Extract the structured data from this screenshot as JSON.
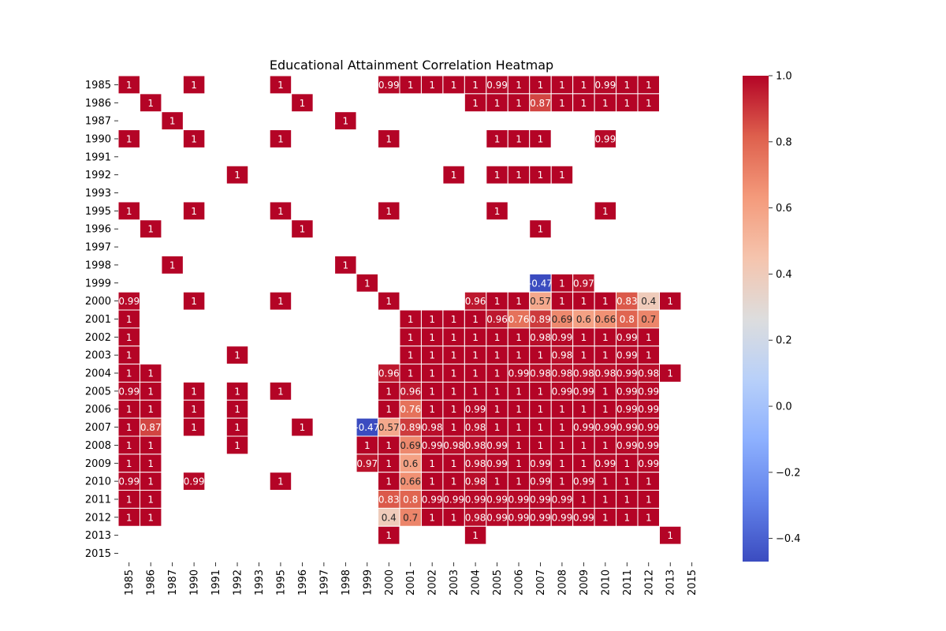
{
  "chart_data": {
    "type": "heatmap",
    "title": "Educational Attainment Correlation Heatmap",
    "xlabel": "",
    "ylabel": "",
    "colormap": "coolwarm",
    "vmin": -0.47,
    "vmax": 1.0,
    "colorbar_ticks": [
      "1.0",
      "0.8",
      "0.6",
      "0.4",
      "0.2",
      "0.0",
      "−0.2",
      "−0.4"
    ],
    "colorbar_tick_values": [
      1.0,
      0.8,
      0.6,
      0.4,
      0.2,
      0.0,
      -0.2,
      -0.4
    ],
    "rows": [
      "1985",
      "1986",
      "1987",
      "1990",
      "1991",
      "1992",
      "1993",
      "1995",
      "1996",
      "1997",
      "1998",
      "1999",
      "2000",
      "2001",
      "2002",
      "2003",
      "2004",
      "2005",
      "2006",
      "2007",
      "2008",
      "2009",
      "2010",
      "2011",
      "2012",
      "2013",
      "2015"
    ],
    "cols": [
      "1985",
      "1986",
      "1987",
      "1990",
      "1991",
      "1992",
      "1993",
      "1995",
      "1996",
      "1997",
      "1998",
      "1999",
      "2000",
      "2001",
      "2002",
      "2003",
      "2004",
      "2005",
      "2006",
      "2007",
      "2008",
      "2009",
      "2010",
      "2011",
      "2012",
      "2013",
      "2015"
    ],
    "cells": [
      [
        "1985",
        "1985",
        1
      ],
      [
        "1985",
        "1990",
        1
      ],
      [
        "1985",
        "1995",
        1
      ],
      [
        "1985",
        "2000",
        0.99
      ],
      [
        "1985",
        "2001",
        1
      ],
      [
        "1985",
        "2002",
        1
      ],
      [
        "1985",
        "2003",
        1
      ],
      [
        "1985",
        "2004",
        1
      ],
      [
        "1985",
        "2005",
        0.99
      ],
      [
        "1985",
        "2006",
        1
      ],
      [
        "1985",
        "2007",
        1
      ],
      [
        "1985",
        "2008",
        1
      ],
      [
        "1985",
        "2009",
        1
      ],
      [
        "1985",
        "2010",
        0.99
      ],
      [
        "1985",
        "2011",
        1
      ],
      [
        "1985",
        "2012",
        1
      ],
      [
        "1986",
        "1986",
        1
      ],
      [
        "1986",
        "1996",
        1
      ],
      [
        "1986",
        "2004",
        1
      ],
      [
        "1986",
        "2005",
        1
      ],
      [
        "1986",
        "2006",
        1
      ],
      [
        "1986",
        "2007",
        0.87
      ],
      [
        "1986",
        "2008",
        1
      ],
      [
        "1986",
        "2009",
        1
      ],
      [
        "1986",
        "2010",
        1
      ],
      [
        "1986",
        "2011",
        1
      ],
      [
        "1986",
        "2012",
        1
      ],
      [
        "1987",
        "1987",
        1
      ],
      [
        "1987",
        "1998",
        1
      ],
      [
        "1990",
        "1985",
        1
      ],
      [
        "1990",
        "1990",
        1
      ],
      [
        "1990",
        "1995",
        1
      ],
      [
        "1990",
        "2000",
        1
      ],
      [
        "1990",
        "2005",
        1
      ],
      [
        "1990",
        "2006",
        1
      ],
      [
        "1990",
        "2007",
        1
      ],
      [
        "1990",
        "2010",
        0.99
      ],
      [
        "1992",
        "1992",
        1
      ],
      [
        "1992",
        "2003",
        1
      ],
      [
        "1992",
        "2005",
        1
      ],
      [
        "1992",
        "2006",
        1
      ],
      [
        "1992",
        "2007",
        1
      ],
      [
        "1992",
        "2008",
        1
      ],
      [
        "1995",
        "1985",
        1
      ],
      [
        "1995",
        "1990",
        1
      ],
      [
        "1995",
        "1995",
        1
      ],
      [
        "1995",
        "2000",
        1
      ],
      [
        "1995",
        "2005",
        1
      ],
      [
        "1995",
        "2010",
        1
      ],
      [
        "1996",
        "1986",
        1
      ],
      [
        "1996",
        "1996",
        1
      ],
      [
        "1996",
        "2007",
        1
      ],
      [
        "1998",
        "1987",
        1
      ],
      [
        "1998",
        "1998",
        1
      ],
      [
        "1999",
        "1999",
        1
      ],
      [
        "1999",
        "2007",
        -0.47
      ],
      [
        "1999",
        "2008",
        1
      ],
      [
        "1999",
        "2009",
        0.97
      ],
      [
        "2000",
        "1985",
        0.99
      ],
      [
        "2000",
        "1990",
        1
      ],
      [
        "2000",
        "1995",
        1
      ],
      [
        "2000",
        "2000",
        1
      ],
      [
        "2000",
        "2004",
        0.96
      ],
      [
        "2000",
        "2005",
        1
      ],
      [
        "2000",
        "2006",
        1
      ],
      [
        "2000",
        "2007",
        0.57
      ],
      [
        "2000",
        "2008",
        1
      ],
      [
        "2000",
        "2009",
        1
      ],
      [
        "2000",
        "2010",
        1
      ],
      [
        "2000",
        "2011",
        0.83
      ],
      [
        "2000",
        "2012",
        0.4
      ],
      [
        "2000",
        "2013",
        1
      ],
      [
        "2001",
        "1985",
        1
      ],
      [
        "2001",
        "2001",
        1
      ],
      [
        "2001",
        "2002",
        1
      ],
      [
        "2001",
        "2003",
        1
      ],
      [
        "2001",
        "2004",
        1
      ],
      [
        "2001",
        "2005",
        0.96
      ],
      [
        "2001",
        "2006",
        0.76
      ],
      [
        "2001",
        "2007",
        0.89
      ],
      [
        "2001",
        "2008",
        0.69
      ],
      [
        "2001",
        "2009",
        0.6
      ],
      [
        "2001",
        "2010",
        0.66
      ],
      [
        "2001",
        "2011",
        0.8
      ],
      [
        "2001",
        "2012",
        0.7
      ],
      [
        "2002",
        "1985",
        1
      ],
      [
        "2002",
        "2001",
        1
      ],
      [
        "2002",
        "2002",
        1
      ],
      [
        "2002",
        "2003",
        1
      ],
      [
        "2002",
        "2004",
        1
      ],
      [
        "2002",
        "2005",
        1
      ],
      [
        "2002",
        "2006",
        1
      ],
      [
        "2002",
        "2007",
        0.98
      ],
      [
        "2002",
        "2008",
        0.99
      ],
      [
        "2002",
        "2009",
        1
      ],
      [
        "2002",
        "2010",
        1
      ],
      [
        "2002",
        "2011",
        0.99
      ],
      [
        "2002",
        "2012",
        1
      ],
      [
        "2003",
        "1985",
        1
      ],
      [
        "2003",
        "1992",
        1
      ],
      [
        "2003",
        "2001",
        1
      ],
      [
        "2003",
        "2002",
        1
      ],
      [
        "2003",
        "2003",
        1
      ],
      [
        "2003",
        "2004",
        1
      ],
      [
        "2003",
        "2005",
        1
      ],
      [
        "2003",
        "2006",
        1
      ],
      [
        "2003",
        "2007",
        1
      ],
      [
        "2003",
        "2008",
        0.98
      ],
      [
        "2003",
        "2009",
        1
      ],
      [
        "2003",
        "2010",
        1
      ],
      [
        "2003",
        "2011",
        0.99
      ],
      [
        "2003",
        "2012",
        1
      ],
      [
        "2004",
        "1985",
        1
      ],
      [
        "2004",
        "1986",
        1
      ],
      [
        "2004",
        "2000",
        0.96
      ],
      [
        "2004",
        "2001",
        1
      ],
      [
        "2004",
        "2002",
        1
      ],
      [
        "2004",
        "2003",
        1
      ],
      [
        "2004",
        "2004",
        1
      ],
      [
        "2004",
        "2005",
        1
      ],
      [
        "2004",
        "2006",
        0.99
      ],
      [
        "2004",
        "2007",
        0.98
      ],
      [
        "2004",
        "2008",
        0.98
      ],
      [
        "2004",
        "2009",
        0.98
      ],
      [
        "2004",
        "2010",
        0.98
      ],
      [
        "2004",
        "2011",
        0.99
      ],
      [
        "2004",
        "2012",
        0.98
      ],
      [
        "2004",
        "2013",
        1
      ],
      [
        "2005",
        "1985",
        0.99
      ],
      [
        "2005",
        "1986",
        1
      ],
      [
        "2005",
        "1990",
        1
      ],
      [
        "2005",
        "1992",
        1
      ],
      [
        "2005",
        "1995",
        1
      ],
      [
        "2005",
        "2000",
        1
      ],
      [
        "2005",
        "2001",
        0.96
      ],
      [
        "2005",
        "2002",
        1
      ],
      [
        "2005",
        "2003",
        1
      ],
      [
        "2005",
        "2004",
        1
      ],
      [
        "2005",
        "2005",
        1
      ],
      [
        "2005",
        "2006",
        1
      ],
      [
        "2005",
        "2007",
        1
      ],
      [
        "2005",
        "2008",
        0.99
      ],
      [
        "2005",
        "2009",
        0.99
      ],
      [
        "2005",
        "2010",
        1
      ],
      [
        "2005",
        "2011",
        0.99
      ],
      [
        "2005",
        "2012",
        0.99
      ],
      [
        "2006",
        "1985",
        1
      ],
      [
        "2006",
        "1986",
        1
      ],
      [
        "2006",
        "1990",
        1
      ],
      [
        "2006",
        "1992",
        1
      ],
      [
        "2006",
        "2000",
        1
      ],
      [
        "2006",
        "2001",
        0.76
      ],
      [
        "2006",
        "2002",
        1
      ],
      [
        "2006",
        "2003",
        1
      ],
      [
        "2006",
        "2004",
        0.99
      ],
      [
        "2006",
        "2005",
        1
      ],
      [
        "2006",
        "2006",
        1
      ],
      [
        "2006",
        "2007",
        1
      ],
      [
        "2006",
        "2008",
        1
      ],
      [
        "2006",
        "2009",
        1
      ],
      [
        "2006",
        "2010",
        1
      ],
      [
        "2006",
        "2011",
        0.99
      ],
      [
        "2006",
        "2012",
        0.99
      ],
      [
        "2007",
        "1985",
        1
      ],
      [
        "2007",
        "1986",
        0.87
      ],
      [
        "2007",
        "1990",
        1
      ],
      [
        "2007",
        "1992",
        1
      ],
      [
        "2007",
        "1996",
        1
      ],
      [
        "2007",
        "1999",
        -0.47
      ],
      [
        "2007",
        "2000",
        0.57
      ],
      [
        "2007",
        "2001",
        0.89
      ],
      [
        "2007",
        "2002",
        0.98
      ],
      [
        "2007",
        "2003",
        1
      ],
      [
        "2007",
        "2004",
        0.98
      ],
      [
        "2007",
        "2005",
        1
      ],
      [
        "2007",
        "2006",
        1
      ],
      [
        "2007",
        "2007",
        1
      ],
      [
        "2007",
        "2008",
        1
      ],
      [
        "2007",
        "2009",
        0.99
      ],
      [
        "2007",
        "2010",
        0.99
      ],
      [
        "2007",
        "2011",
        0.99
      ],
      [
        "2007",
        "2012",
        0.99
      ],
      [
        "2008",
        "1985",
        1
      ],
      [
        "2008",
        "1986",
        1
      ],
      [
        "2008",
        "1992",
        1
      ],
      [
        "2008",
        "1999",
        1
      ],
      [
        "2008",
        "2000",
        1
      ],
      [
        "2008",
        "2001",
        0.69
      ],
      [
        "2008",
        "2002",
        0.99
      ],
      [
        "2008",
        "2003",
        0.98
      ],
      [
        "2008",
        "2004",
        0.98
      ],
      [
        "2008",
        "2005",
        0.99
      ],
      [
        "2008",
        "2006",
        1
      ],
      [
        "2008",
        "2007",
        1
      ],
      [
        "2008",
        "2008",
        1
      ],
      [
        "2008",
        "2009",
        1
      ],
      [
        "2008",
        "2010",
        1
      ],
      [
        "2008",
        "2011",
        0.99
      ],
      [
        "2008",
        "2012",
        0.99
      ],
      [
        "2009",
        "1985",
        1
      ],
      [
        "2009",
        "1986",
        1
      ],
      [
        "2009",
        "1999",
        0.97
      ],
      [
        "2009",
        "2000",
        1
      ],
      [
        "2009",
        "2001",
        0.6
      ],
      [
        "2009",
        "2002",
        1
      ],
      [
        "2009",
        "2003",
        1
      ],
      [
        "2009",
        "2004",
        0.98
      ],
      [
        "2009",
        "2005",
        0.99
      ],
      [
        "2009",
        "2006",
        1
      ],
      [
        "2009",
        "2007",
        0.99
      ],
      [
        "2009",
        "2008",
        1
      ],
      [
        "2009",
        "2009",
        1
      ],
      [
        "2009",
        "2010",
        0.99
      ],
      [
        "2009",
        "2011",
        1
      ],
      [
        "2009",
        "2012",
        0.99
      ],
      [
        "2010",
        "1985",
        0.99
      ],
      [
        "2010",
        "1986",
        1
      ],
      [
        "2010",
        "1990",
        0.99
      ],
      [
        "2010",
        "1995",
        1
      ],
      [
        "2010",
        "2000",
        1
      ],
      [
        "2010",
        "2001",
        0.66
      ],
      [
        "2010",
        "2002",
        1
      ],
      [
        "2010",
        "2003",
        1
      ],
      [
        "2010",
        "2004",
        0.98
      ],
      [
        "2010",
        "2005",
        1
      ],
      [
        "2010",
        "2006",
        1
      ],
      [
        "2010",
        "2007",
        0.99
      ],
      [
        "2010",
        "2008",
        1
      ],
      [
        "2010",
        "2009",
        0.99
      ],
      [
        "2010",
        "2010",
        1
      ],
      [
        "2010",
        "2011",
        1
      ],
      [
        "2010",
        "2012",
        1
      ],
      [
        "2011",
        "1985",
        1
      ],
      [
        "2011",
        "1986",
        1
      ],
      [
        "2011",
        "2000",
        0.83
      ],
      [
        "2011",
        "2001",
        0.8
      ],
      [
        "2011",
        "2002",
        0.99
      ],
      [
        "2011",
        "2003",
        0.99
      ],
      [
        "2011",
        "2004",
        0.99
      ],
      [
        "2011",
        "2005",
        0.99
      ],
      [
        "2011",
        "2006",
        0.99
      ],
      [
        "2011",
        "2007",
        0.99
      ],
      [
        "2011",
        "2008",
        0.99
      ],
      [
        "2011",
        "2009",
        1
      ],
      [
        "2011",
        "2010",
        1
      ],
      [
        "2011",
        "2011",
        1
      ],
      [
        "2011",
        "2012",
        1
      ],
      [
        "2012",
        "1985",
        1
      ],
      [
        "2012",
        "1986",
        1
      ],
      [
        "2012",
        "2000",
        0.4
      ],
      [
        "2012",
        "2001",
        0.7
      ],
      [
        "2012",
        "2002",
        1
      ],
      [
        "2012",
        "2003",
        1
      ],
      [
        "2012",
        "2004",
        0.98
      ],
      [
        "2012",
        "2005",
        0.99
      ],
      [
        "2012",
        "2006",
        0.99
      ],
      [
        "2012",
        "2007",
        0.99
      ],
      [
        "2012",
        "2008",
        0.99
      ],
      [
        "2012",
        "2009",
        0.99
      ],
      [
        "2012",
        "2010",
        1
      ],
      [
        "2012",
        "2011",
        1
      ],
      [
        "2012",
        "2012",
        1
      ],
      [
        "2013",
        "2000",
        1
      ],
      [
        "2013",
        "2004",
        1
      ],
      [
        "2013",
        "2013",
        1
      ]
    ]
  }
}
